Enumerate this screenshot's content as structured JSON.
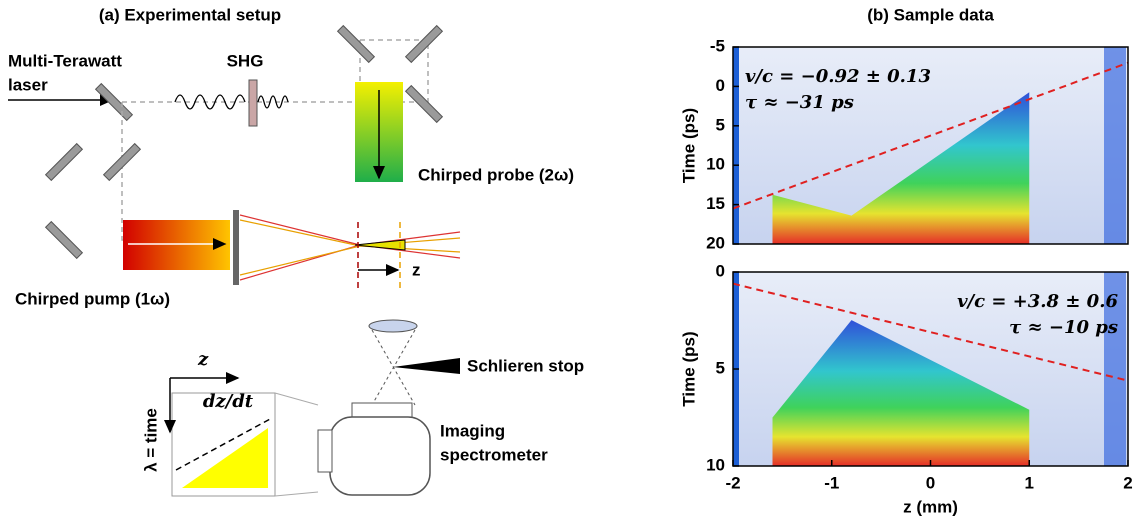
{
  "setup": {
    "title": "(a) Experimental setup",
    "laser": [
      "Multi-Terawatt",
      "laser"
    ],
    "shg": "SHG",
    "probe": "Chirped probe (2ω)",
    "pump": "Chirped pump (1ω)",
    "z_arrow": "z",
    "stop": "Schlieren stop",
    "spectrometer": [
      "Imaging",
      "spectrometer"
    ],
    "inset_z": "z",
    "inset_slope": "dz/dt",
    "inset_lambda": "λ = time"
  },
  "chart_data": [
    {
      "type": "heatmap",
      "title": "(b) Sample data",
      "ylabel": "Time (ps)",
      "xlim": [
        -2,
        2
      ],
      "ylim": [
        -5,
        20
      ],
      "yticks": [
        -5,
        0,
        5,
        10,
        15,
        20
      ],
      "annotations": [
        "v/c = −0.92 ± 0.13",
        "τ ≈ −31 ps"
      ]
    },
    {
      "type": "heatmap",
      "ylabel": "Time (ps)",
      "xlabel": "z (mm)",
      "xlim": [
        -2,
        2
      ],
      "xticks": [
        -2,
        -1,
        0,
        1,
        2
      ],
      "ylim": [
        0,
        10
      ],
      "yticks": [
        0,
        5,
        10
      ],
      "annotations": [
        "v/c = +3.8 ± 0.6",
        "τ ≈ −10 ps"
      ]
    }
  ]
}
